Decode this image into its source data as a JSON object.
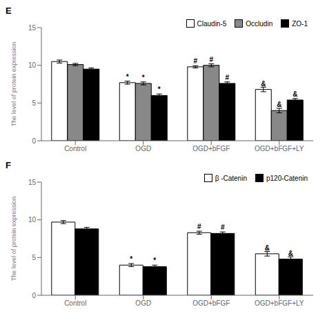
{
  "chart_data": [
    {
      "type": "bar",
      "title": "E",
      "categories": [
        "Control",
        "OGD",
        "OGD+bFGF",
        "OGD+bFGF+LY"
      ],
      "series": [
        {
          "name": "Claudin-5",
          "color": "white",
          "values": [
            10.5,
            7.7,
            9.8,
            6.8
          ],
          "errors": [
            0.2,
            0.2,
            0.15,
            0.3
          ],
          "annotations": [
            null,
            "*",
            "#",
            "&"
          ]
        },
        {
          "name": "Occludin",
          "color": "#888888",
          "values": [
            10.1,
            7.6,
            10.0,
            4.0
          ],
          "errors": [
            0.15,
            0.2,
            0.2,
            0.3
          ],
          "annotations": [
            null,
            "*",
            "#",
            "&"
          ]
        },
        {
          "name": "ZO-1",
          "color": "black",
          "values": [
            9.5,
            6.0,
            7.6,
            5.4
          ],
          "errors": [
            0.15,
            0.2,
            0.2,
            0.2
          ],
          "annotations": [
            null,
            "*",
            "#",
            "&"
          ]
        }
      ],
      "ylabel": "The level of protein expression",
      "ylim": [
        0,
        15
      ],
      "yticks": [
        0,
        5,
        10,
        15
      ],
      "legend": "upper right"
    },
    {
      "type": "bar",
      "title": "F",
      "categories": [
        "Control",
        "OGD",
        "OGD+bFGF",
        "OGD+bFGF+LY"
      ],
      "series": [
        {
          "name": "β -Catenin",
          "color": "white",
          "values": [
            9.7,
            4.0,
            8.3,
            5.5
          ],
          "errors": [
            0.2,
            0.2,
            0.2,
            0.3
          ],
          "annotations": [
            null,
            "*",
            "#",
            "&"
          ]
        },
        {
          "name": "p120-Catenin",
          "color": "black",
          "values": [
            8.8,
            3.8,
            8.2,
            4.8
          ],
          "errors": [
            0.2,
            0.2,
            0.2,
            0.3
          ],
          "annotations": [
            null,
            "*",
            "#",
            "&"
          ]
        }
      ],
      "ylabel": "The level of protein expression",
      "ylim": [
        0,
        15
      ],
      "yticks": [
        0,
        5,
        10,
        15
      ],
      "legend": "upper right"
    }
  ]
}
